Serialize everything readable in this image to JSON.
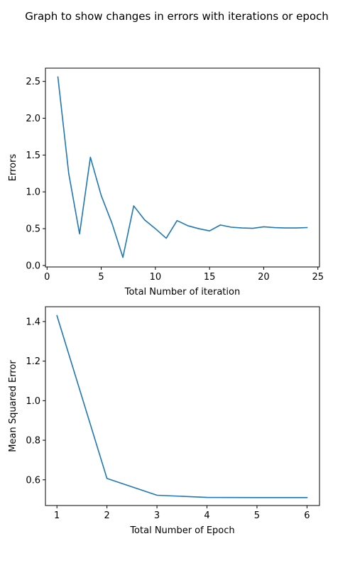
{
  "figure": {
    "title": "Graph to show changes in errors with iterations or epoch"
  },
  "chart_data": [
    {
      "type": "line",
      "xlabel": "Total Number of iteration",
      "ylabel": "Errors",
      "xlim": [
        -0.15,
        25.15
      ],
      "ylim": [
        -0.02,
        2.68
      ],
      "xticks": [
        0,
        5,
        10,
        15,
        20,
        25
      ],
      "yticks": [
        0.0,
        0.5,
        1.0,
        1.5,
        2.0,
        2.5
      ],
      "xtick_labels": [
        "0",
        "5",
        "10",
        "15",
        "20",
        "25"
      ],
      "ytick_labels": [
        "0.0",
        "0.5",
        "1.0",
        "1.5",
        "2.0",
        "2.5"
      ],
      "grid": false,
      "color": "#1f77b4",
      "x": [
        1,
        2,
        3,
        4,
        5,
        6,
        7,
        8,
        9,
        10,
        11,
        12,
        13,
        14,
        15,
        16,
        17,
        18,
        19,
        20,
        21,
        22,
        23,
        24
      ],
      "y": [
        2.56,
        1.25,
        0.43,
        1.47,
        0.95,
        0.57,
        0.11,
        0.81,
        0.62,
        0.5,
        0.37,
        0.61,
        0.54,
        0.5,
        0.47,
        0.55,
        0.52,
        0.51,
        0.505,
        0.525,
        0.515,
        0.51,
        0.51,
        0.515
      ]
    },
    {
      "type": "line",
      "xlabel": "Total Number of Epoch",
      "ylabel": "Mean Squared Error",
      "xlim": [
        0.77,
        6.25
      ],
      "ylim": [
        0.47,
        1.475
      ],
      "xticks": [
        1,
        2,
        3,
        4,
        5,
        6
      ],
      "yticks": [
        0.6,
        0.8,
        1.0,
        1.2,
        1.4
      ],
      "xtick_labels": [
        "1",
        "2",
        "3",
        "4",
        "5",
        "6"
      ],
      "ytick_labels": [
        "0.6",
        "0.8",
        "1.0",
        "1.2",
        "1.4"
      ],
      "grid": false,
      "color": "#1f77b4",
      "x": [
        1,
        2,
        3,
        4,
        5,
        6
      ],
      "y": [
        1.43,
        0.607,
        0.522,
        0.511,
        0.51,
        0.51
      ]
    }
  ]
}
